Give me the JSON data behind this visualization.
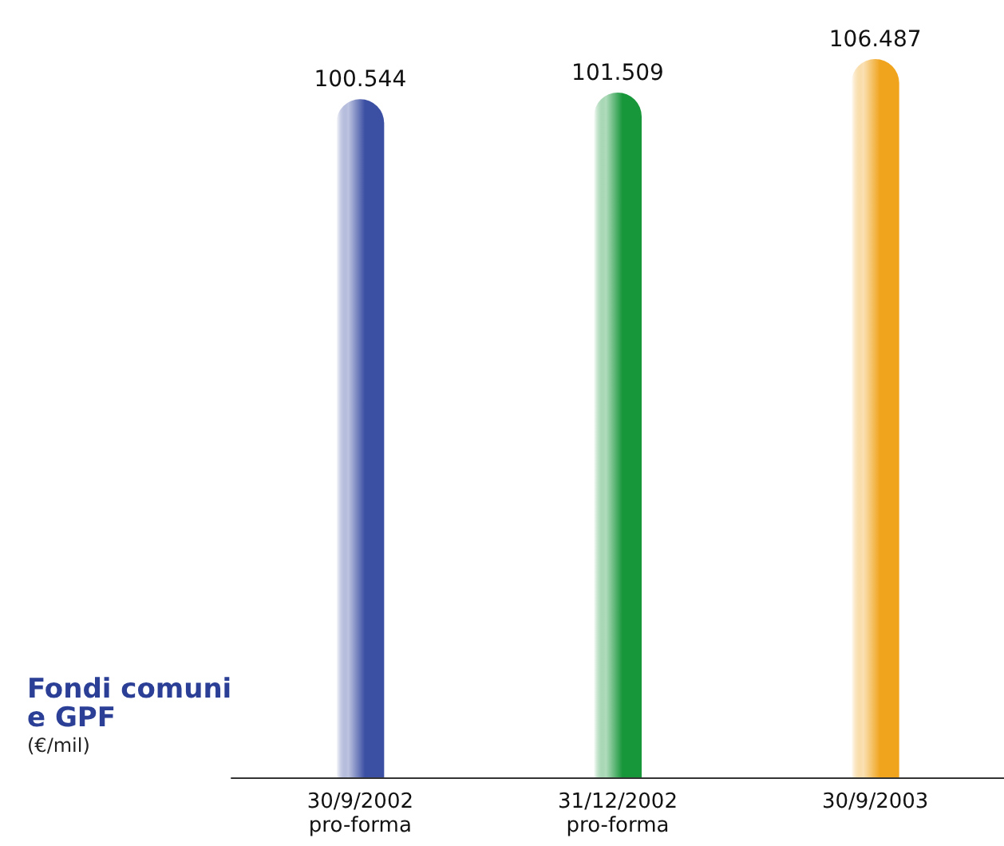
{
  "chart_data": {
    "type": "bar",
    "title": "Fondi comuni\ne GPF",
    "subtitle": "(€/mil)",
    "categories": [
      "30/9/2002\npro-forma",
      "31/12/2002\npro-forma",
      "30/9/2003"
    ],
    "values": [
      100544,
      101509,
      106487
    ],
    "colors": [
      "#3b4fa3",
      "#17963a",
      "#f0a41e"
    ],
    "value_labels": [
      "100.544",
      "101.509",
      "106.487"
    ],
    "tick_labels": "x"
  }
}
